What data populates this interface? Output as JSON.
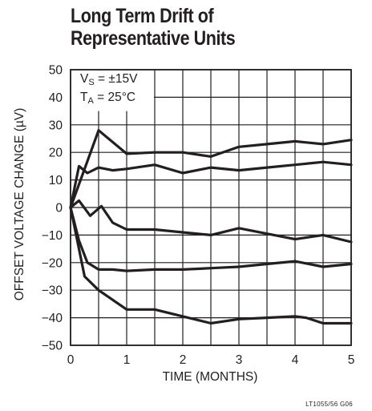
{
  "chart_data": {
    "type": "line",
    "title": [
      "Long Term Drift of",
      "Representative Units"
    ],
    "xlabel": "TIME (MONTHS)",
    "ylabel": "OFFSET VOLTAGE CHANGE (µV)",
    "xlim": [
      0,
      5
    ],
    "ylim": [
      -50,
      50
    ],
    "xticks": [
      0,
      1,
      2,
      3,
      4,
      5
    ],
    "yticks": [
      -50,
      -40,
      -30,
      -20,
      -10,
      0,
      10,
      20,
      30,
      40,
      50
    ],
    "x_minor_gridlines": [
      0.5,
      1.5,
      2.5,
      3.5,
      4.5
    ],
    "grid": true,
    "annotations": {
      "vs": {
        "main": "V",
        "sub": "S",
        "rest": " = ±15V"
      },
      "ta": {
        "main": "T",
        "sub": "A",
        "rest": " = 25°C"
      }
    },
    "figure_code": "LT1055/56 G06",
    "series": [
      {
        "x": [
          0,
          0.5,
          1,
          1.5,
          2,
          2.5,
          3,
          3.5,
          4,
          4.5,
          5
        ],
        "y": [
          0,
          28,
          19.5,
          20,
          20,
          18.5,
          22,
          23,
          24,
          23,
          24.5
        ]
      },
      {
        "x": [
          0,
          0.15,
          0.3,
          0.5,
          0.75,
          1,
          1.5,
          2,
          2.5,
          3,
          3.5,
          4,
          4.5,
          5
        ],
        "y": [
          0,
          15,
          12.5,
          14.5,
          13.5,
          14,
          15.5,
          12.5,
          14.5,
          13.5,
          14.5,
          15.5,
          16.5,
          15.5
        ]
      },
      {
        "x": [
          0,
          0.15,
          0.35,
          0.55,
          0.75,
          1,
          1.5,
          2,
          2.5,
          3,
          3.5,
          4,
          4.5,
          5
        ],
        "y": [
          0,
          2.5,
          -3,
          0.5,
          -5.5,
          -8,
          -8,
          -9,
          -10,
          -7.5,
          -9.5,
          -11.5,
          -10,
          -12.5
        ]
      },
      {
        "x": [
          0,
          0.15,
          0.3,
          0.5,
          0.75,
          1,
          1.5,
          2,
          2.5,
          3,
          3.5,
          4,
          4.5,
          5
        ],
        "y": [
          0,
          -12,
          -20,
          -22.5,
          -22.5,
          -23,
          -22.5,
          -22.5,
          -22,
          -21.5,
          -20.5,
          -19.5,
          -21.5,
          -20.5
        ]
      },
      {
        "x": [
          0,
          0.25,
          0.5,
          1,
          1.5,
          2,
          2.5,
          3,
          3.5,
          4,
          4.2,
          4.5,
          5
        ],
        "y": [
          0,
          -25,
          -30,
          -37,
          -37,
          -39.5,
          -42,
          -40.5,
          -40,
          -39.5,
          -40,
          -42,
          -42
        ]
      }
    ]
  }
}
